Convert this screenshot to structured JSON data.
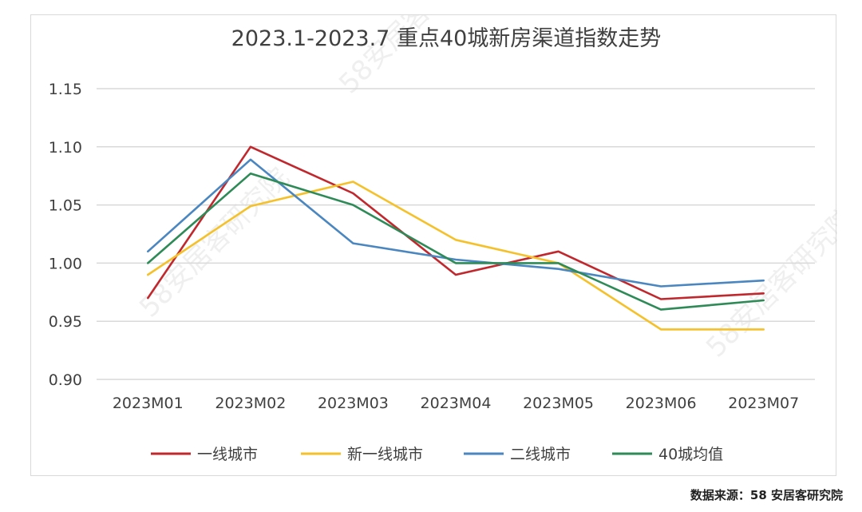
{
  "chart_data": {
    "type": "line",
    "title": "2023.1-2023.7 重点40城新房渠道指数走势",
    "categories": [
      "2023M01",
      "2023M02",
      "2023M03",
      "2023M04",
      "2023M05",
      "2023M06",
      "2023M07"
    ],
    "yticks": [
      "0.90",
      "0.95",
      "1.00",
      "1.05",
      "1.10",
      "1.15"
    ],
    "ylim": [
      0.9,
      1.15
    ],
    "grid": true,
    "legend_position": "bottom",
    "series": [
      {
        "name": "一线城市",
        "color": "#c0282d",
        "values": [
          0.97,
          1.1,
          1.06,
          0.99,
          1.01,
          0.969,
          0.974
        ]
      },
      {
        "name": "新一线城市",
        "color": "#f5c12b",
        "values": [
          0.99,
          1.049,
          1.07,
          1.02,
          1.0,
          0.943,
          0.943
        ]
      },
      {
        "name": "二线城市",
        "color": "#4a86c0",
        "values": [
          1.01,
          1.089,
          1.017,
          1.003,
          0.995,
          0.98,
          0.985
        ]
      },
      {
        "name": "40城均值",
        "color": "#2e8b57",
        "values": [
          1.0,
          1.077,
          1.05,
          1.0,
          1.0,
          0.96,
          0.968
        ]
      }
    ]
  },
  "watermark": "58安居客研究院",
  "source_note": "数据来源：58 安居客研究院"
}
